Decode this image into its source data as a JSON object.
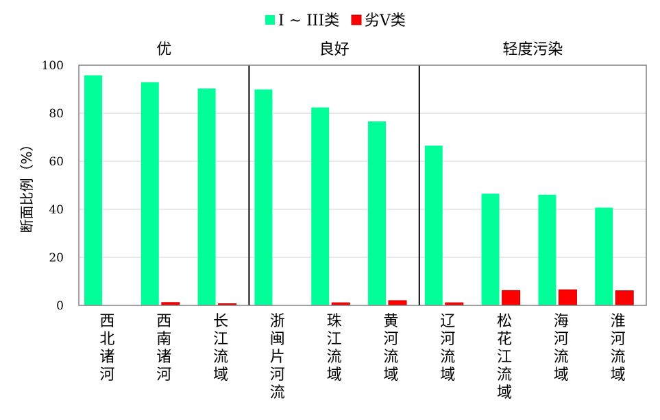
{
  "chart_data": {
    "type": "bar",
    "categories": [
      "西北诸河",
      "西南诸河",
      "长江流域",
      "浙闽片河流",
      "珠江流域",
      "黄河流域",
      "辽河流域",
      "松花江流域",
      "海河流域",
      "淮河流域"
    ],
    "series": [
      {
        "name": "I ~ III类",
        "color": "#00ff99",
        "values": [
          95.8,
          92.9,
          90.3,
          89.9,
          82.4,
          76.6,
          66.5,
          46.5,
          46.1,
          40.7
        ]
      },
      {
        "name": "劣V类",
        "color": "#ff0000",
        "values": [
          0.0,
          1.2,
          0.7,
          0.0,
          1.1,
          2.0,
          1.1,
          6.2,
          6.5,
          6.1
        ]
      }
    ],
    "groups": [
      {
        "label": "优",
        "start": 0,
        "end": 2
      },
      {
        "label": "良好",
        "start": 3,
        "end": 5
      },
      {
        "label": "轻度污染",
        "start": 6,
        "end": 9
      }
    ],
    "ylabel": "断面比例（%）",
    "xlabel": "",
    "ylim": [
      0,
      100
    ],
    "yticks": [
      0,
      20,
      40,
      60,
      80,
      100
    ],
    "grid": true,
    "legend": "top-center"
  }
}
